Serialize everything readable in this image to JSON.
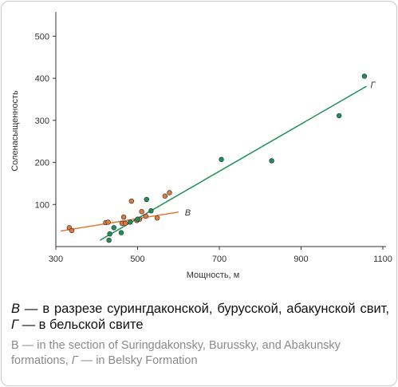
{
  "chart_data": {
    "type": "scatter",
    "xlabel": "Мощность, м",
    "ylabel": "Соленасыщенность",
    "xlim": [
      300,
      1100
    ],
    "ylim": [
      0,
      550
    ],
    "xticks": [
      300,
      500,
      700,
      900,
      1100
    ],
    "yticks": [
      100,
      200,
      300,
      400,
      500
    ],
    "grid": false,
    "series": [
      {
        "name": "В",
        "color": "#e07a3c",
        "points": [
          [
            333,
            45
          ],
          [
            339,
            38
          ],
          [
            422,
            57
          ],
          [
            428,
            58
          ],
          [
            462,
            55
          ],
          [
            466,
            70
          ],
          [
            470,
            55
          ],
          [
            485,
            108
          ],
          [
            498,
            62
          ],
          [
            505,
            65
          ],
          [
            510,
            83
          ],
          [
            520,
            72
          ],
          [
            548,
            68
          ],
          [
            567,
            120
          ],
          [
            578,
            128
          ]
        ],
        "trend": [
          [
            312,
            37
          ],
          [
            600,
            82
          ]
        ]
      },
      {
        "name": "Г",
        "color": "#1f8f5a",
        "points": [
          [
            430,
            15
          ],
          [
            432,
            30
          ],
          [
            442,
            45
          ],
          [
            460,
            33
          ],
          [
            482,
            58
          ],
          [
            500,
            65
          ],
          [
            522,
            112
          ],
          [
            533,
            85
          ],
          [
            705,
            207
          ],
          [
            828,
            204
          ],
          [
            993,
            311
          ],
          [
            1055,
            405
          ]
        ],
        "trend": [
          [
            408,
            15
          ],
          [
            1060,
            381
          ]
        ]
      }
    ]
  },
  "caption": {
    "ru_label_v": "В",
    "ru_text_1": " — в разрезе сурингдаконской, бурусской, абакунской свит, ",
    "ru_label_g": "Г",
    "ru_text_2": " — в бельской свите",
    "en_label_v": "B",
    "en_text_1": " — in the section of Suringdakonsky, Burussky, and Abakunsky formations, ",
    "en_label_g": "Г",
    "en_text_2": " — in Belsky Formation"
  }
}
